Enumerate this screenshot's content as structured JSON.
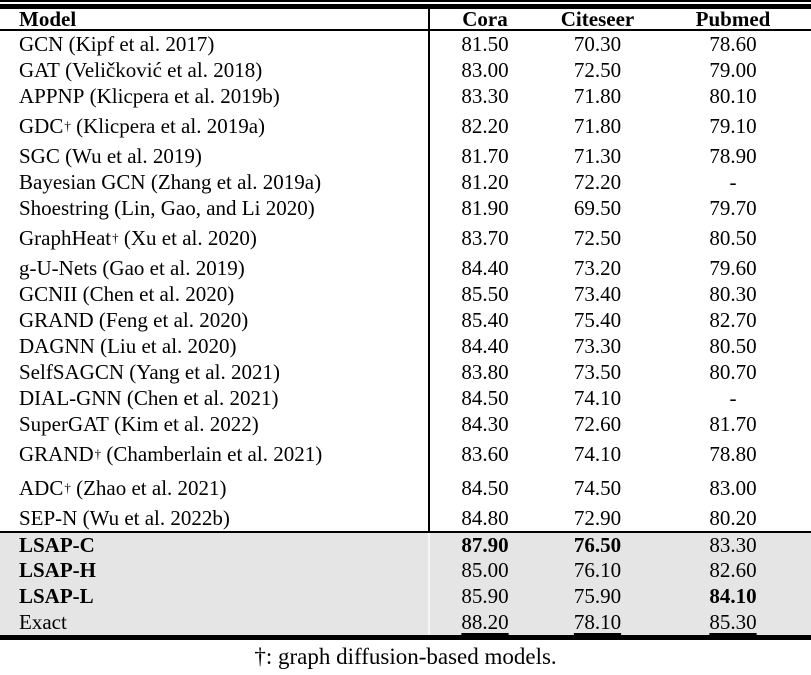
{
  "table": {
    "columns": [
      "Model",
      "Cora",
      "Citeseer",
      "Pubmed"
    ],
    "dagger_symbol": "†",
    "rows": [
      {
        "model": "GCN",
        "cite": "(Kipf et al. 2017)",
        "values": [
          "81.50",
          "70.30",
          "78.60"
        ]
      },
      {
        "model": "GAT",
        "cite": "(Veličković et al. 2018)",
        "values": [
          "83.00",
          "72.50",
          "79.00"
        ]
      },
      {
        "model": "APPNP",
        "cite": "(Klicpera et al. 2019b)",
        "values": [
          "83.30",
          "71.80",
          "80.10"
        ]
      },
      {
        "model": "GDC",
        "dagger": true,
        "cite": "(Klicpera et al. 2019a)",
        "values": [
          "82.20",
          "71.80",
          "79.10"
        ]
      },
      {
        "model": "SGC",
        "cite": "(Wu et al. 2019)",
        "values": [
          "81.70",
          "71.30",
          "78.90"
        ]
      },
      {
        "model": "Bayesian GCN",
        "cite": "(Zhang et al. 2019a)",
        "values": [
          "81.20",
          "72.20",
          "-"
        ]
      },
      {
        "model": "Shoestring",
        "cite": "(Lin, Gao, and Li 2020)",
        "values": [
          "81.90",
          "69.50",
          "79.70"
        ]
      },
      {
        "model": "GraphHeat",
        "dagger": true,
        "cite": "(Xu et al. 2020)",
        "values": [
          "83.70",
          "72.50",
          "80.50"
        ]
      },
      {
        "model": "g-U-Nets",
        "cite": "(Gao et al. 2019)",
        "values": [
          "84.40",
          "73.20",
          "79.60"
        ]
      },
      {
        "model": "GCNII",
        "cite": "(Chen et al. 2020)",
        "values": [
          "85.50",
          "73.40",
          "80.30"
        ]
      },
      {
        "model": "GRAND",
        "cite": "(Feng et al. 2020)",
        "values": [
          "85.40",
          "75.40",
          "82.70"
        ]
      },
      {
        "model": "DAGNN",
        "cite": "(Liu et al. 2020)",
        "values": [
          "84.40",
          "73.30",
          "80.50"
        ]
      },
      {
        "model": "SelfSAGCN",
        "cite": "(Yang et al. 2021)",
        "values": [
          "83.80",
          "73.50",
          "80.70"
        ]
      },
      {
        "model": "DIAL-GNN",
        "cite": "(Chen et al. 2021)",
        "values": [
          "84.50",
          "74.10",
          "-"
        ]
      },
      {
        "model": "SuperGAT",
        "cite": "(Kim et al. 2022)",
        "values": [
          "84.30",
          "72.60",
          "81.70"
        ]
      },
      {
        "model": "GRAND",
        "dagger": true,
        "cite": "(Chamberlain et al. 2021)",
        "values": [
          "83.60",
          "74.10",
          "78.80"
        ]
      },
      {
        "model": "ADC",
        "dagger": true,
        "cite": "(Zhao et al. 2021)",
        "values": [
          "84.50",
          "74.50",
          "83.00"
        ]
      },
      {
        "model": "SEP-N",
        "cite": "(Wu et al. 2022b)",
        "values": [
          "84.80",
          "72.90",
          "80.20"
        ]
      },
      {
        "model": "LSAP-C",
        "shaded": true,
        "bold_name": true,
        "rule_above": true,
        "values": [
          "87.90",
          "76.50",
          "83.30"
        ],
        "bold_values": [
          true,
          true,
          false
        ]
      },
      {
        "model": "LSAP-H",
        "shaded": true,
        "bold_name": true,
        "values": [
          "85.00",
          "76.10",
          "82.60"
        ]
      },
      {
        "model": "LSAP-L",
        "shaded": true,
        "bold_name": true,
        "values": [
          "85.90",
          "75.90",
          "84.10"
        ],
        "bold_values": [
          false,
          false,
          true
        ]
      },
      {
        "model": "Exact",
        "shaded": true,
        "values": [
          "88.20",
          "78.10",
          "85.30"
        ],
        "underline_values": [
          true,
          true,
          true
        ]
      }
    ],
    "footnote": "†: graph diffusion-based models.",
    "colors": {
      "shading": "#e5e5e5",
      "rule": "#000000",
      "text": "#000000"
    }
  }
}
